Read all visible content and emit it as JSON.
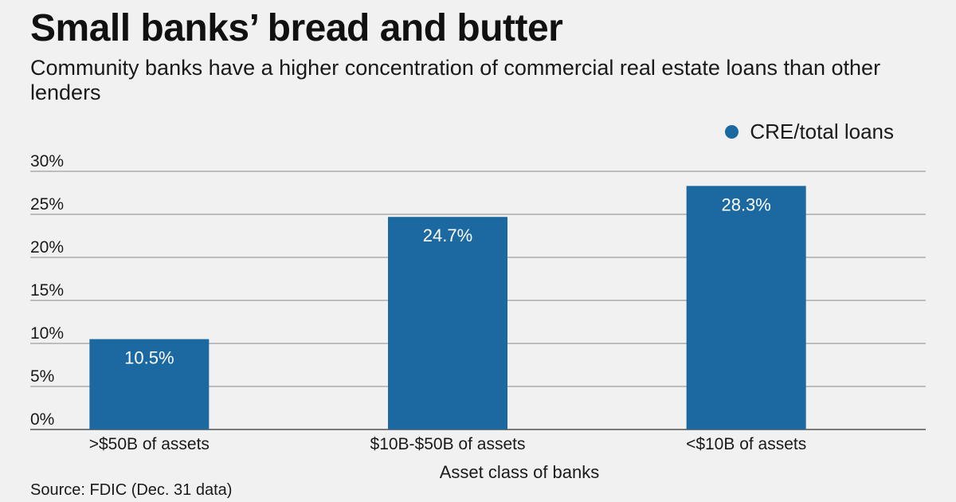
{
  "title": "Small banks’ bread and butter",
  "subtitle": "Community banks have a higher concentration of commercial real estate loans than other lenders",
  "source": "Source: FDIC (Dec. 31 data)",
  "colors": {
    "bar": "#1c69a1",
    "grid": "#666666",
    "background": "#f0f1f0"
  },
  "chart_data": {
    "type": "bar",
    "categories": [
      ">$50B of assets",
      "$10B-$50B of assets",
      "<$10B of assets"
    ],
    "series": [
      {
        "name": "CRE/total loans",
        "values": [
          10.5,
          24.7,
          28.3
        ],
        "labels": [
          "10.5%",
          "24.7%",
          "28.3%"
        ]
      }
    ],
    "xlabel": "Asset class of banks",
    "ylabel": "",
    "ylim": [
      0,
      30
    ],
    "yticks": [
      0,
      5,
      10,
      15,
      20,
      25,
      30
    ],
    "ytick_labels": [
      "0%",
      "5%",
      "10%",
      "15%",
      "20%",
      "25%",
      "30%"
    ],
    "grid": true,
    "legend": "top-right"
  }
}
